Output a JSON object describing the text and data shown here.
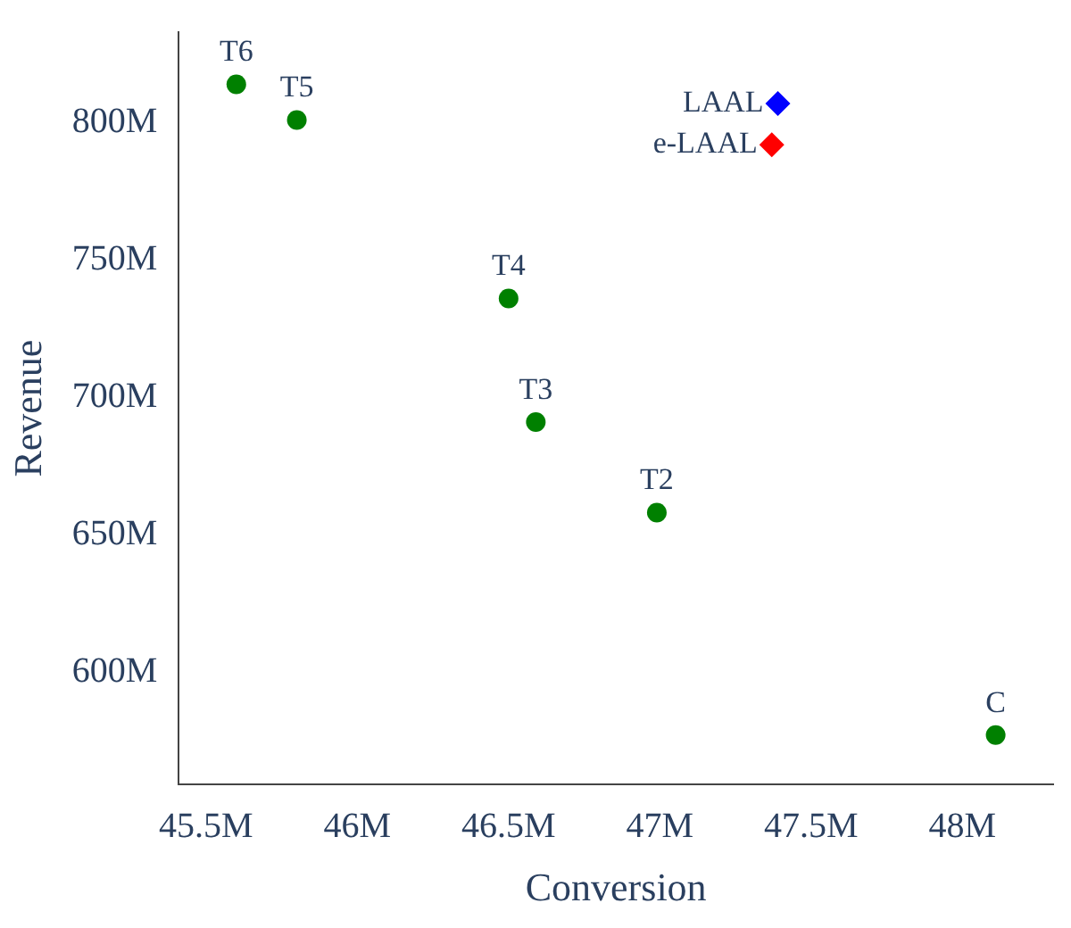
{
  "chart_data": {
    "type": "scatter",
    "xlabel": "Conversion",
    "ylabel": "Revenue",
    "xlim": [
      45.41,
      48.3
    ],
    "ylim": [
      559,
      833
    ],
    "xticks": [
      {
        "value": 45.5,
        "label": "45.5M"
      },
      {
        "value": 46,
        "label": "46M"
      },
      {
        "value": 46.5,
        "label": "46.5M"
      },
      {
        "value": 47,
        "label": "47M"
      },
      {
        "value": 47.5,
        "label": "47.5M"
      },
      {
        "value": 48,
        "label": "48M"
      }
    ],
    "yticks": [
      {
        "value": 600,
        "label": "600M"
      },
      {
        "value": 650,
        "label": "650M"
      },
      {
        "value": 700,
        "label": "700M"
      },
      {
        "value": 750,
        "label": "750M"
      },
      {
        "value": 800,
        "label": "800M"
      }
    ],
    "grid": false,
    "legend": false,
    "series": [
      {
        "color": "#008000",
        "marker": "circle",
        "x": [
          45.6,
          45.8,
          46.5,
          46.59,
          46.99,
          48.11
        ],
        "values": [
          814,
          801,
          736,
          691,
          658,
          577
        ],
        "value_labels": [
          "T6",
          "T5",
          "T4",
          "T3",
          "T2",
          "C"
        ]
      },
      {
        "name": "LAAL",
        "color": "#0000ff",
        "marker": "diamond",
        "x": [
          47.39
        ],
        "values": [
          807
        ]
      },
      {
        "name": "e-LAAL",
        "color": "#ff0000",
        "marker": "diamond",
        "x": [
          47.37
        ],
        "values": [
          792
        ]
      }
    ]
  }
}
